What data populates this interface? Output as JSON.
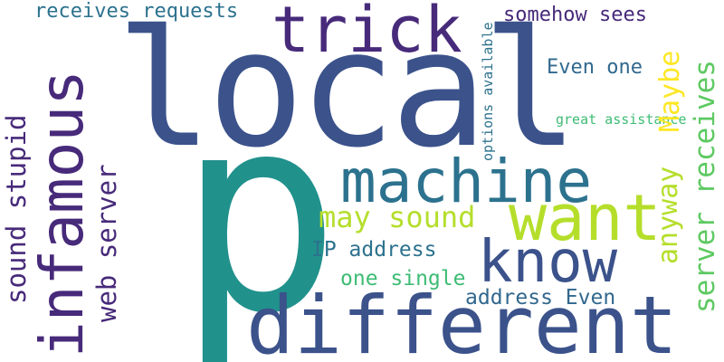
{
  "words": {
    "local": "local",
    "p": "p",
    "different": "different",
    "machine": "machine",
    "want": "want",
    "know": "know",
    "trick": "trick",
    "infamous": "infamous",
    "sound_stupid": "sound stupid",
    "web_server": "web server",
    "may_sound": "may sound",
    "ip_address": "IP address",
    "one_single": "one single",
    "address_even": "address Even",
    "receives_requests": "receives requests",
    "options_available": "options available",
    "somehow_sees": "somehow sees",
    "even_one": "Even one",
    "maybe": "Maybe",
    "great_assistance": "great assistance",
    "server_receives": "server receives",
    "anyway": "anyway"
  },
  "colors": {
    "background": "#ffffff",
    "dark_purple": "#472a7a",
    "indigo": "#3b528b",
    "blue": "#31688e",
    "teal_blue": "#2c728e",
    "teal": "#21918c",
    "sea_green": "#1fa187",
    "green": "#3ebc74",
    "light_green": "#5ec962",
    "yellow_green": "#b5de2b",
    "yellow": "#fde725",
    "deep_purple": "#440154"
  }
}
